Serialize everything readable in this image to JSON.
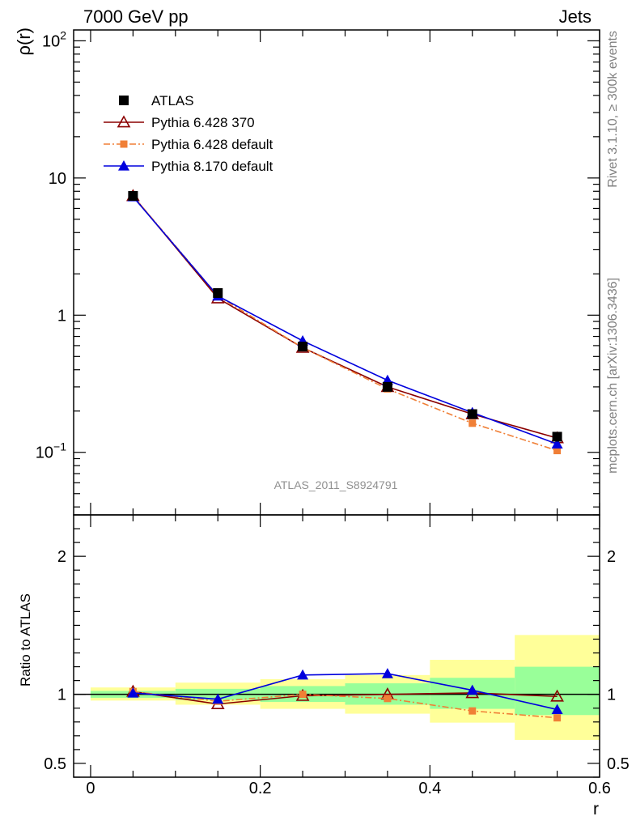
{
  "header": {
    "left": "7000 GeV pp",
    "right": "Jets"
  },
  "side_labels": {
    "top": "Rivet 3.1.10, ≥ 300k events",
    "bottom": "mcplots.cern.ch [arXiv:1306.3436]"
  },
  "watermark": "ATLAS_2011_S8924791",
  "chart_data": [
    {
      "type": "line",
      "ylabel": "ρ(r)",
      "yscale": "log",
      "ylim": [
        0.035,
        120
      ],
      "xlim": [
        -0.02,
        0.6
      ],
      "ytick_labels": [
        {
          "value": 100,
          "base": "10",
          "exp": "2"
        },
        {
          "value": 10,
          "text": "10"
        },
        {
          "value": 1,
          "text": "1"
        },
        {
          "value": 0.1,
          "base": "10",
          "exp": "−1"
        }
      ],
      "x": [
        0.05,
        0.15,
        0.25,
        0.35,
        0.45,
        0.55
      ],
      "series": [
        {
          "name": "ATLAS",
          "color": "#000000",
          "marker": "square",
          "values": [
            7.4,
            1.45,
            0.59,
            0.3,
            0.19,
            0.13
          ]
        },
        {
          "name": "Pythia 6.428 370",
          "color": "#8b0000",
          "marker": "open-triangle",
          "values": [
            7.4,
            1.33,
            0.58,
            0.3,
            0.19,
            0.127
          ]
        },
        {
          "name": "Pythia 6.428 default",
          "color": "#f07f36",
          "marker": "small-square",
          "dash": true,
          "values": [
            7.4,
            1.38,
            0.58,
            0.29,
            0.163,
            0.103
          ]
        },
        {
          "name": "Pythia 8.170 default",
          "color": "#0000dd",
          "marker": "filled-triangle",
          "values": [
            7.3,
            1.38,
            0.65,
            0.335,
            0.195,
            0.115
          ]
        }
      ]
    },
    {
      "type": "line",
      "ylabel": "Ratio to ATLAS",
      "xlabel": "r",
      "ylim": [
        0.4,
        2.3
      ],
      "xlim": [
        -0.02,
        0.6
      ],
      "xtick_labels": [
        "0",
        "0.2",
        "0.4",
        "0.6"
      ],
      "ytick_labels": [
        "0.5",
        "1",
        "2"
      ],
      "x": [
        0.05,
        0.15,
        0.25,
        0.35,
        0.45,
        0.55
      ],
      "bands": [
        {
          "x0": 0.0,
          "x1": 0.1,
          "yellow": [
            0.955,
            1.05
          ],
          "green": [
            0.975,
            1.025
          ]
        },
        {
          "x0": 0.1,
          "x1": 0.2,
          "yellow": [
            0.925,
            1.085
          ],
          "green": [
            0.96,
            1.04
          ]
        },
        {
          "x0": 0.2,
          "x1": 0.3,
          "yellow": [
            0.895,
            1.11
          ],
          "green": [
            0.945,
            1.06
          ]
        },
        {
          "x0": 0.3,
          "x1": 0.4,
          "yellow": [
            0.86,
            1.14
          ],
          "green": [
            0.925,
            1.08
          ]
        },
        {
          "x0": 0.4,
          "x1": 0.5,
          "yellow": [
            0.795,
            1.25
          ],
          "green": [
            0.895,
            1.12
          ]
        },
        {
          "x0": 0.5,
          "x1": 0.6,
          "yellow": [
            0.67,
            1.43
          ],
          "green": [
            0.85,
            1.2
          ]
        }
      ],
      "series": [
        {
          "name": "Pythia 6.428 370",
          "color": "#8b0000",
          "marker": "open-triangle",
          "values": [
            1.02,
            0.93,
            0.99,
            1.0,
            1.01,
            0.985
          ]
        },
        {
          "name": "Pythia 6.428 default",
          "color": "#f07f36",
          "marker": "small-square",
          "dash": true,
          "values": [
            1.02,
            0.95,
            1.0,
            0.97,
            0.88,
            0.83
          ]
        },
        {
          "name": "Pythia 8.170 default",
          "color": "#0000dd",
          "marker": "filled-triangle",
          "values": [
            1.01,
            0.965,
            1.14,
            1.15,
            1.03,
            0.89
          ]
        }
      ]
    }
  ]
}
